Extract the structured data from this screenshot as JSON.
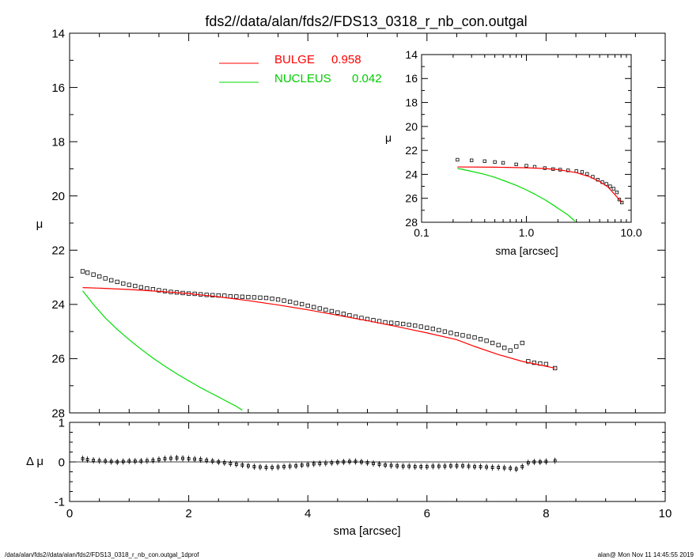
{
  "title": "fds2//data/alan/fds2/FDS13_0318_r_nb_con.outgal",
  "footer_left": "/data/alan/fds2//data/alan/fds2/FDS13_0318_r_nb_con.outgal_1dprof",
  "footer_right": "alan@  Mon Nov 11 14:45:55 2019",
  "colors": {
    "bulge": "#ff0000",
    "nucleus": "#00dd00",
    "data": "#000000"
  },
  "chart_data": [
    {
      "id": "main",
      "type": "line",
      "xlabel": "",
      "ylabel": "μ",
      "xlim": [
        0,
        10
      ],
      "ylim": [
        28,
        14
      ],
      "x_ticks": [
        0,
        2,
        4,
        6,
        8,
        10
      ],
      "y_ticks": [
        14,
        16,
        18,
        20,
        22,
        24,
        26,
        28
      ],
      "y_tick_labels": [
        "14",
        "16",
        "18",
        "20",
        "22",
        "24",
        "26",
        "28"
      ],
      "legend": {
        "placement": "top-center",
        "entries": [
          {
            "label": "BULGE",
            "value": "0.958",
            "color": "#ff0000"
          },
          {
            "label": "NUCLEUS",
            "value": "0.042",
            "color": "#00dd00"
          }
        ]
      },
      "series": [
        {
          "name": "data",
          "kind": "points",
          "x": [
            0.22,
            0.3,
            0.4,
            0.5,
            0.6,
            0.7,
            0.8,
            0.9,
            1.0,
            1.1,
            1.2,
            1.3,
            1.4,
            1.5,
            1.6,
            1.7,
            1.8,
            1.9,
            2.0,
            2.1,
            2.2,
            2.3,
            2.4,
            2.5,
            2.6,
            2.7,
            2.8,
            2.9,
            3.0,
            3.1,
            3.2,
            3.3,
            3.4,
            3.5,
            3.6,
            3.7,
            3.8,
            3.9,
            4.0,
            4.1,
            4.2,
            4.3,
            4.4,
            4.5,
            4.6,
            4.7,
            4.8,
            4.9,
            5.0,
            5.1,
            5.2,
            5.3,
            5.4,
            5.5,
            5.6,
            5.7,
            5.8,
            5.9,
            6.0,
            6.1,
            6.2,
            6.3,
            6.4,
            6.5,
            6.6,
            6.7,
            6.8,
            6.9,
            7.0,
            7.1,
            7.2,
            7.3,
            7.4,
            7.5,
            7.6,
            7.7,
            7.8,
            7.9,
            8.0,
            8.15
          ],
          "y": [
            22.78,
            22.83,
            22.9,
            22.97,
            23.04,
            23.11,
            23.17,
            23.23,
            23.28,
            23.32,
            23.37,
            23.41,
            23.44,
            23.48,
            23.51,
            23.54,
            23.56,
            23.58,
            23.6,
            23.61,
            23.63,
            23.65,
            23.66,
            23.67,
            23.68,
            23.7,
            23.71,
            23.72,
            23.73,
            23.74,
            23.75,
            23.76,
            23.79,
            23.82,
            23.86,
            23.9,
            23.95,
            23.99,
            24.05,
            24.1,
            24.15,
            24.2,
            24.25,
            24.3,
            24.35,
            24.4,
            24.45,
            24.5,
            24.54,
            24.58,
            24.62,
            24.66,
            24.68,
            24.7,
            24.72,
            24.75,
            24.78,
            24.82,
            24.86,
            24.9,
            24.95,
            25.0,
            25.05,
            25.1,
            25.14,
            25.18,
            25.22,
            25.28,
            25.34,
            25.42,
            25.5,
            25.6,
            25.7,
            25.55,
            25.42,
            26.1,
            26.15,
            26.18,
            26.2,
            26.35
          ]
        },
        {
          "name": "BULGE",
          "kind": "line",
          "color": "#ff0000",
          "x": [
            0.22,
            0.5,
            1.0,
            1.5,
            2.0,
            2.5,
            3.0,
            3.5,
            4.0,
            4.5,
            5.0,
            5.5,
            6.0,
            6.5,
            6.8,
            7.2,
            7.6,
            8.15
          ],
          "y": [
            23.38,
            23.4,
            23.45,
            23.52,
            23.6,
            23.72,
            23.86,
            24.02,
            24.2,
            24.4,
            24.6,
            24.82,
            25.05,
            25.3,
            25.55,
            25.85,
            26.1,
            26.35
          ]
        },
        {
          "name": "NUCLEUS",
          "kind": "line",
          "color": "#00dd00",
          "x": [
            0.22,
            0.4,
            0.6,
            0.8,
            1.0,
            1.2,
            1.4,
            1.6,
            1.8,
            2.0,
            2.2,
            2.4,
            2.6,
            2.8,
            2.9
          ],
          "y": [
            23.5,
            24.0,
            24.5,
            24.92,
            25.3,
            25.65,
            25.98,
            26.28,
            26.56,
            26.82,
            27.07,
            27.3,
            27.53,
            27.76,
            27.9
          ]
        }
      ]
    },
    {
      "id": "inset",
      "type": "line",
      "xlabel": "sma [arcsec]",
      "ylabel": "μ",
      "x_scale": "log",
      "xlim": [
        0.1,
        10.0
      ],
      "ylim": [
        28,
        14
      ],
      "x_ticks": [
        0.1,
        1.0,
        10.0
      ],
      "x_tick_labels": [
        "0.1",
        "1.0",
        "10.0"
      ],
      "y_ticks": [
        14,
        16,
        18,
        20,
        22,
        24,
        26,
        28
      ],
      "y_tick_labels": [
        "14",
        "16",
        "18",
        "20",
        "22",
        "24",
        "26",
        "28"
      ],
      "series": [
        {
          "name": "data",
          "kind": "points",
          "x": [
            0.22,
            0.3,
            0.4,
            0.5,
            0.6,
            0.8,
            1.0,
            1.2,
            1.5,
            1.8,
            2.1,
            2.5,
            3.0,
            3.4,
            3.8,
            4.3,
            4.8,
            5.3,
            5.8,
            6.3,
            6.8,
            7.3,
            7.7,
            8.15
          ],
          "y": [
            22.78,
            22.83,
            22.9,
            22.97,
            23.04,
            23.17,
            23.28,
            23.37,
            23.48,
            23.56,
            23.61,
            23.67,
            23.73,
            23.8,
            23.96,
            24.2,
            24.45,
            24.65,
            24.8,
            25.0,
            25.2,
            25.5,
            26.1,
            26.35
          ]
        },
        {
          "name": "BULGE",
          "kind": "line",
          "color": "#ff0000",
          "x": [
            0.22,
            0.5,
            1.0,
            1.5,
            2.0,
            3.0,
            4.0,
            5.0,
            6.0,
            7.0,
            8.15
          ],
          "y": [
            23.38,
            23.4,
            23.45,
            23.52,
            23.6,
            23.86,
            24.2,
            24.6,
            25.05,
            25.7,
            26.35
          ]
        },
        {
          "name": "NUCLEUS",
          "kind": "line",
          "color": "#00dd00",
          "x": [
            0.22,
            0.3,
            0.4,
            0.5,
            0.6,
            0.8,
            1.0,
            1.2,
            1.5,
            1.8,
            2.1,
            2.5,
            2.9
          ],
          "y": [
            23.5,
            23.75,
            24.0,
            24.25,
            24.5,
            24.92,
            25.3,
            25.65,
            26.12,
            26.56,
            26.95,
            27.4,
            27.9
          ]
        }
      ]
    },
    {
      "id": "residual",
      "type": "scatter",
      "xlabel": "sma [arcsec]",
      "ylabel": "Δ μ",
      "xlim": [
        0,
        10
      ],
      "ylim": [
        -1,
        1
      ],
      "x_ticks": [
        0,
        2,
        4,
        6,
        8,
        10
      ],
      "x_tick_labels": [
        "0",
        "2",
        "4",
        "6",
        "8",
        "10"
      ],
      "y_ticks": [
        -1,
        0,
        1
      ],
      "y_tick_labels": [
        "-1",
        "0",
        "1"
      ],
      "series": [
        {
          "name": "residual",
          "kind": "points",
          "x": [
            0.22,
            0.3,
            0.4,
            0.5,
            0.6,
            0.7,
            0.8,
            0.9,
            1.0,
            1.1,
            1.2,
            1.3,
            1.4,
            1.5,
            1.6,
            1.7,
            1.8,
            1.9,
            2.0,
            2.1,
            2.2,
            2.3,
            2.4,
            2.5,
            2.6,
            2.7,
            2.8,
            2.9,
            3.0,
            3.1,
            3.2,
            3.3,
            3.4,
            3.5,
            3.6,
            3.7,
            3.8,
            3.9,
            4.0,
            4.1,
            4.2,
            4.3,
            4.4,
            4.5,
            4.6,
            4.7,
            4.8,
            4.9,
            5.0,
            5.1,
            5.2,
            5.3,
            5.4,
            5.5,
            5.6,
            5.7,
            5.8,
            5.9,
            6.0,
            6.1,
            6.2,
            6.3,
            6.4,
            6.5,
            6.6,
            6.7,
            6.8,
            6.9,
            7.0,
            7.1,
            7.2,
            7.3,
            7.4,
            7.5,
            7.6,
            7.7,
            7.8,
            7.9,
            8.0,
            8.15
          ],
          "y": [
            0.08,
            0.06,
            0.04,
            0.03,
            0.02,
            0.01,
            0.0,
            0.01,
            0.02,
            0.02,
            0.02,
            0.03,
            0.04,
            0.06,
            0.08,
            0.09,
            0.1,
            0.09,
            0.08,
            0.07,
            0.06,
            0.04,
            0.02,
            0.0,
            -0.02,
            -0.04,
            -0.06,
            -0.08,
            -0.1,
            -0.12,
            -0.13,
            -0.14,
            -0.14,
            -0.13,
            -0.12,
            -0.11,
            -0.1,
            -0.08,
            -0.07,
            -0.05,
            -0.04,
            -0.03,
            -0.02,
            -0.01,
            0.0,
            0.01,
            0.01,
            0.0,
            -0.02,
            -0.04,
            -0.06,
            -0.08,
            -0.09,
            -0.1,
            -0.11,
            -0.11,
            -0.12,
            -0.12,
            -0.12,
            -0.11,
            -0.11,
            -0.11,
            -0.1,
            -0.1,
            -0.1,
            -0.11,
            -0.12,
            -0.12,
            -0.13,
            -0.14,
            -0.14,
            -0.15,
            -0.16,
            -0.18,
            -0.12,
            -0.02,
            0.0,
            0.0,
            0.01,
            0.03
          ]
        }
      ]
    }
  ]
}
